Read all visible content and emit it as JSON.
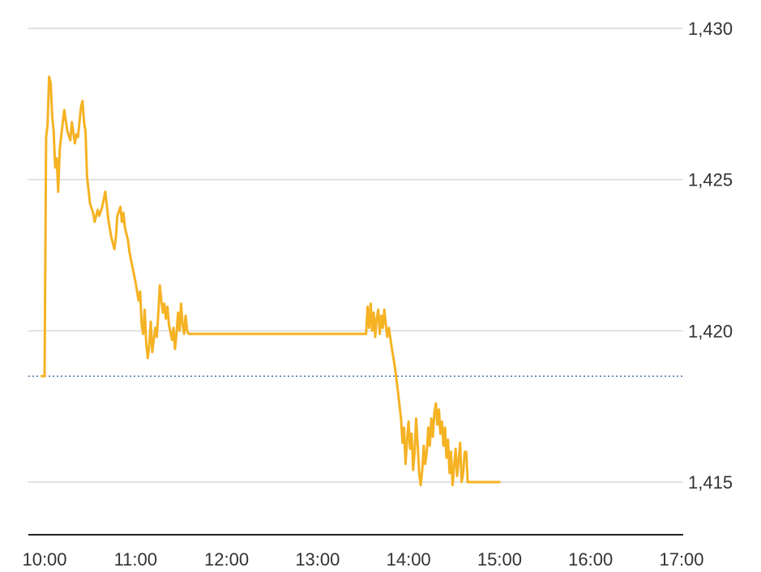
{
  "chart_data": {
    "type": "line",
    "title": "",
    "xlabel": "",
    "ylabel": "",
    "xlim": [
      "10:00",
      "17:00"
    ],
    "ylim": [
      1413.2,
      1430
    ],
    "grid": true,
    "y_ticks": [
      {
        "value": 1430,
        "label": "1,430"
      },
      {
        "value": 1425,
        "label": "1,425"
      },
      {
        "value": 1420,
        "label": "1,420"
      },
      {
        "value": 1415,
        "label": "1,415"
      }
    ],
    "x_ticks": [
      "10:00",
      "11:00",
      "12:00",
      "13:00",
      "14:00",
      "15:00",
      "16:00",
      "17:00"
    ],
    "reference_line": {
      "value": 1418.5,
      "style": "dotted"
    },
    "series": [
      {
        "color": "#f5b223",
        "points": [
          [
            "09:58",
            1418.5
          ],
          [
            "10:00",
            1418.5
          ],
          [
            "10:01",
            1426.4
          ],
          [
            "10:02",
            1426.8
          ],
          [
            "10:03",
            1428.4
          ],
          [
            "10:04",
            1428.2
          ],
          [
            "10:05",
            1427.1
          ],
          [
            "10:06",
            1426.6
          ],
          [
            "10:07",
            1425.4
          ],
          [
            "10:08",
            1425.7
          ],
          [
            "10:09",
            1424.6
          ],
          [
            "10:10",
            1426.0
          ],
          [
            "10:12",
            1426.9
          ],
          [
            "10:13",
            1427.3
          ],
          [
            "10:15",
            1426.6
          ],
          [
            "10:17",
            1426.3
          ],
          [
            "10:18",
            1426.9
          ],
          [
            "10:20",
            1426.2
          ],
          [
            "10:21",
            1426.5
          ],
          [
            "10:22",
            1426.4
          ],
          [
            "10:24",
            1427.4
          ],
          [
            "10:25",
            1427.6
          ],
          [
            "10:26",
            1426.9
          ],
          [
            "10:27",
            1426.6
          ],
          [
            "10:28",
            1425.1
          ],
          [
            "10:30",
            1424.2
          ],
          [
            "10:32",
            1423.9
          ],
          [
            "10:33",
            1423.6
          ],
          [
            "10:35",
            1424.0
          ],
          [
            "10:36",
            1423.8
          ],
          [
            "10:38",
            1424.1
          ],
          [
            "10:40",
            1424.6
          ],
          [
            "10:42",
            1423.7
          ],
          [
            "10:44",
            1423.1
          ],
          [
            "10:46",
            1422.7
          ],
          [
            "10:47",
            1423.1
          ],
          [
            "10:48",
            1423.8
          ],
          [
            "10:50",
            1424.1
          ],
          [
            "10:51",
            1423.6
          ],
          [
            "10:52",
            1423.9
          ],
          [
            "10:53",
            1423.4
          ],
          [
            "10:55",
            1423.0
          ],
          [
            "10:56",
            1422.6
          ],
          [
            "10:58",
            1422.1
          ],
          [
            "11:00",
            1421.6
          ],
          [
            "11:02",
            1421.0
          ],
          [
            "11:03",
            1421.3
          ],
          [
            "11:04",
            1420.2
          ],
          [
            "11:05",
            1419.9
          ],
          [
            "11:06",
            1420.7
          ],
          [
            "11:07",
            1419.6
          ],
          [
            "11:08",
            1419.1
          ],
          [
            "11:09",
            1419.5
          ],
          [
            "11:10",
            1420.3
          ],
          [
            "11:11",
            1419.3
          ],
          [
            "11:12",
            1419.7
          ],
          [
            "11:13",
            1420.1
          ],
          [
            "11:14",
            1419.8
          ],
          [
            "11:15",
            1420.6
          ],
          [
            "11:16",
            1421.5
          ],
          [
            "11:17",
            1421.0
          ],
          [
            "11:18",
            1420.6
          ],
          [
            "11:19",
            1420.9
          ],
          [
            "11:20",
            1420.4
          ],
          [
            "11:21",
            1420.8
          ],
          [
            "11:22",
            1420.2
          ],
          [
            "11:24",
            1419.7
          ],
          [
            "11:25",
            1420.1
          ],
          [
            "11:26",
            1419.4
          ],
          [
            "11:27",
            1419.9
          ],
          [
            "11:28",
            1420.6
          ],
          [
            "11:29",
            1420.0
          ],
          [
            "11:30",
            1420.9
          ],
          [
            "11:31",
            1420.2
          ],
          [
            "11:32",
            1419.9
          ],
          [
            "11:33",
            1420.5
          ],
          [
            "11:34",
            1420.0
          ],
          [
            "11:35",
            1419.9
          ],
          [
            "11:40",
            1419.9
          ],
          [
            "12:00",
            1419.9
          ],
          [
            "13:00",
            1419.9
          ],
          [
            "13:32",
            1419.9
          ],
          [
            "13:33",
            1420.8
          ],
          [
            "13:34",
            1420.1
          ],
          [
            "13:35",
            1420.9
          ],
          [
            "13:36",
            1420.0
          ],
          [
            "13:37",
            1420.6
          ],
          [
            "13:38",
            1419.8
          ],
          [
            "13:39",
            1420.4
          ],
          [
            "13:40",
            1420.7
          ],
          [
            "13:41",
            1419.9
          ],
          [
            "13:42",
            1420.5
          ],
          [
            "13:43",
            1420.1
          ],
          [
            "13:44",
            1420.7
          ],
          [
            "13:45",
            1420.2
          ],
          [
            "13:46",
            1419.8
          ],
          [
            "13:47",
            1420.1
          ],
          [
            "13:49",
            1419.4
          ],
          [
            "13:51",
            1418.8
          ],
          [
            "13:53",
            1418.0
          ],
          [
            "13:55",
            1417.1
          ],
          [
            "13:56",
            1416.3
          ],
          [
            "13:57",
            1416.8
          ],
          [
            "13:58",
            1415.6
          ],
          [
            "13:59",
            1416.4
          ],
          [
            "14:00",
            1417.0
          ],
          [
            "14:01",
            1416.1
          ],
          [
            "14:02",
            1416.6
          ],
          [
            "14:03",
            1415.4
          ],
          [
            "14:04",
            1416.0
          ],
          [
            "14:05",
            1417.1
          ],
          [
            "14:06",
            1416.2
          ],
          [
            "14:07",
            1415.3
          ],
          [
            "14:08",
            1414.9
          ],
          [
            "14:09",
            1415.4
          ],
          [
            "14:10",
            1416.2
          ],
          [
            "14:11",
            1415.6
          ],
          [
            "14:12",
            1416.0
          ],
          [
            "14:13",
            1416.8
          ],
          [
            "14:14",
            1416.2
          ],
          [
            "14:15",
            1417.1
          ],
          [
            "14:16",
            1416.5
          ],
          [
            "14:17",
            1417.3
          ],
          [
            "14:18",
            1417.6
          ],
          [
            "14:19",
            1416.9
          ],
          [
            "14:20",
            1417.4
          ],
          [
            "14:21",
            1416.6
          ],
          [
            "14:22",
            1417.0
          ],
          [
            "14:23",
            1416.2
          ],
          [
            "14:24",
            1416.8
          ],
          [
            "14:25",
            1415.8
          ],
          [
            "14:26",
            1416.4
          ],
          [
            "14:27",
            1415.3
          ],
          [
            "14:28",
            1416.0
          ],
          [
            "14:29",
            1414.9
          ],
          [
            "14:30",
            1415.5
          ],
          [
            "14:31",
            1416.1
          ],
          [
            "14:32",
            1415.2
          ],
          [
            "14:33",
            1415.7
          ],
          [
            "14:34",
            1416.3
          ],
          [
            "14:35",
            1415.0
          ],
          [
            "14:36",
            1415.3
          ],
          [
            "14:37",
            1416.0
          ],
          [
            "14:38",
            1416.0
          ],
          [
            "14:39",
            1415.0
          ],
          [
            "14:40",
            1415.0
          ],
          [
            "15:00",
            1415.0
          ]
        ]
      }
    ]
  }
}
